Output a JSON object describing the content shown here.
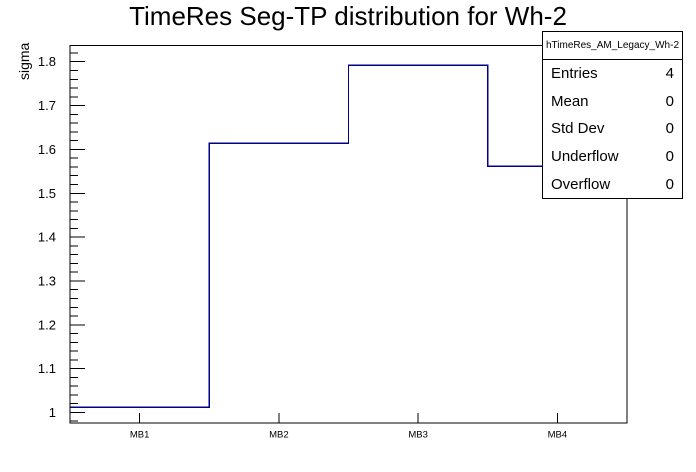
{
  "title": "TimeRes Seg-TP distribution for Wh-2",
  "stats_box": {
    "header": "hTimeRes_AM_Legacy_Wh-2",
    "rows": [
      {
        "label": "Entries",
        "value": "4"
      },
      {
        "label": "Mean",
        "value": "0"
      },
      {
        "label": "Std Dev",
        "value": "0"
      },
      {
        "label": "Underflow",
        "value": "0"
      },
      {
        "label": "Overflow",
        "value": "0"
      }
    ]
  },
  "chart_data": {
    "type": "bar",
    "style": "step-histogram-outline",
    "title": "TimeRes Seg-TP distribution for Wh-2",
    "categories": [
      "MB1",
      "MB2",
      "MB3",
      "MB4"
    ],
    "values": [
      1.012,
      1.614,
      1.792,
      1.562
    ],
    "xlabel": "",
    "ylabel": "sigma",
    "ylim": [
      0.976,
      1.837
    ],
    "y_major_ticks": [
      1,
      1.1,
      1.2,
      1.3,
      1.4,
      1.5,
      1.6,
      1.7,
      1.8
    ],
    "y_minor_tick_step": 0.02,
    "line_color": "#00008b",
    "frame_color": "#000000",
    "grid": false,
    "legend_position": "none"
  }
}
